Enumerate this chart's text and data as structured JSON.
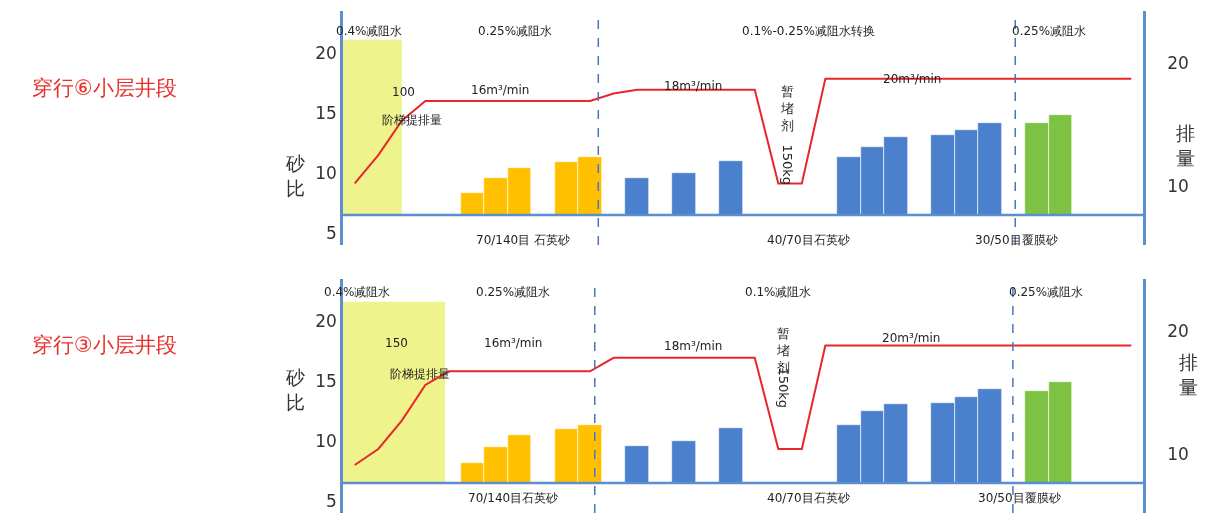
{
  "chart_data": [
    {
      "type": "bar",
      "ylabel": "砂比",
      "y2label": "排量",
      "categories": [
        null,
        null,
        null,
        null,
        null,
        null,
        null,
        null,
        null,
        null,
        null,
        null,
        null,
        null,
        null,
        null,
        null,
        null,
        null,
        null,
        null,
        null,
        null,
        null,
        null,
        null,
        null,
        null,
        null,
        null,
        null,
        null,
        null,
        null
      ],
      "ylim": [
        4,
        23.5
      ],
      "yticks": [
        5,
        10,
        15,
        20
      ],
      "y2lim": [
        5.2,
        24.2
      ],
      "y2ticks": [
        10,
        20
      ],
      "tick_labels": "y",
      "series": [
        {
          "color": "#ffc000",
          "base": [
            null,
            null,
            null,
            null,
            null,
            6.5,
            6.5,
            6.5,
            null,
            6.5,
            6.5,
            null,
            null,
            null,
            null,
            null,
            null,
            null,
            null,
            null,
            null,
            null,
            null,
            null,
            null,
            null,
            null,
            null,
            null,
            null,
            null,
            null,
            null,
            null
          ],
          "values": [
            null,
            null,
            null,
            null,
            null,
            1.8,
            3.1,
            3.9,
            null,
            4.4,
            4.8,
            null,
            null,
            null,
            null,
            null,
            null,
            null,
            null,
            null,
            null,
            null,
            null,
            null,
            null,
            null,
            null,
            null,
            null,
            null,
            null,
            null,
            null,
            null
          ]
        },
        {
          "color": "#4a80cc",
          "base": [
            null,
            null,
            null,
            null,
            null,
            null,
            null,
            null,
            null,
            null,
            null,
            null,
            6.5,
            null,
            6.5,
            null,
            6.5,
            null,
            null,
            null,
            null,
            6.5,
            6.5,
            6.5,
            null,
            6.5,
            6.5,
            6.5,
            null,
            null,
            null,
            null,
            null,
            null
          ],
          "values": [
            null,
            null,
            null,
            null,
            null,
            null,
            null,
            null,
            null,
            null,
            null,
            null,
            3.1,
            null,
            3.5,
            null,
            4.5,
            null,
            null,
            null,
            null,
            4.8,
            5.7,
            6.5,
            null,
            6.7,
            7.1,
            7.7,
            null,
            null,
            null,
            null,
            null,
            null
          ]
        },
        {
          "color": "#7dc242",
          "base": [
            null,
            null,
            null,
            null,
            null,
            null,
            null,
            null,
            null,
            null,
            null,
            null,
            null,
            null,
            null,
            null,
            null,
            null,
            null,
            null,
            null,
            null,
            null,
            null,
            null,
            null,
            null,
            null,
            null,
            6.5,
            6.5,
            null,
            null,
            null
          ],
          "values": [
            null,
            null,
            null,
            null,
            null,
            null,
            null,
            null,
            null,
            null,
            null,
            null,
            null,
            null,
            null,
            null,
            null,
            null,
            null,
            null,
            null,
            null,
            null,
            null,
            null,
            null,
            null,
            null,
            null,
            7.7,
            8.3,
            null,
            null,
            null
          ]
        },
        {
          "type": "line",
          "axis": "y2",
          "color": "#e8262b",
          "values": [
            10.2,
            12.5,
            15.3,
            16.9,
            16.9,
            16.9,
            16.9,
            16.9,
            16.9,
            16.9,
            16.9,
            17.5,
            17.8,
            17.8,
            17.8,
            17.8,
            17.8,
            17.8,
            10.2,
            10.2,
            18.7,
            18.7,
            18.7,
            18.7,
            18.7,
            18.7,
            18.7,
            18.7,
            18.7,
            18.7,
            18.7,
            18.7,
            18.7,
            18.7
          ]
        }
      ],
      "ref_lines": [
        {
          "axis": "y",
          "value": 6.5,
          "color": "#5b8fcf",
          "line_style": "solid"
        }
      ],
      "annotations": [
        "0.4%减阻水",
        "0.25%减阻水",
        "0.1%-0.25%减阻水转换",
        "0.25%减阻水",
        "100",
        "阶梯提排量",
        "16m³/min",
        "18m³/min",
        "20m³/min",
        "暂堵剂150kg",
        "70/140目 石英砂",
        "40/70目石英砂",
        "30/50目覆膜砂",
        "穿行⑥小层井段"
      ]
    },
    {
      "type": "bar",
      "ylabel": "砂比",
      "y2label": "排量",
      "categories": [
        null,
        null,
        null,
        null,
        null,
        null,
        null,
        null,
        null,
        null,
        null,
        null,
        null,
        null,
        null,
        null,
        null,
        null,
        null,
        null,
        null,
        null,
        null,
        null,
        null,
        null,
        null,
        null,
        null,
        null,
        null,
        null,
        null,
        null
      ],
      "ylim": [
        4,
        23.5
      ],
      "yticks": [
        5,
        10,
        15,
        20
      ],
      "y2lim": [
        5.2,
        24.2
      ],
      "y2ticks": [
        10,
        20
      ],
      "tick_labels": "y",
      "series": [
        {
          "color": "#ffc000",
          "base": [
            null,
            null,
            null,
            null,
            null,
            6.5,
            6.5,
            6.5,
            null,
            6.5,
            6.5,
            null,
            null,
            null,
            null,
            null,
            null,
            null,
            null,
            null,
            null,
            null,
            null,
            null,
            null,
            null,
            null,
            null,
            null,
            null,
            null,
            null,
            null,
            null
          ],
          "values": [
            null,
            null,
            null,
            null,
            null,
            1.7,
            3.0,
            4.0,
            null,
            4.5,
            4.8,
            null,
            null,
            null,
            null,
            null,
            null,
            null,
            null,
            null,
            null,
            null,
            null,
            null,
            null,
            null,
            null,
            null,
            null,
            null,
            null,
            null,
            null,
            null
          ]
        },
        {
          "color": "#4a80cc",
          "base": [
            null,
            null,
            null,
            null,
            null,
            null,
            null,
            null,
            null,
            null,
            null,
            null,
            6.5,
            null,
            6.5,
            null,
            6.5,
            null,
            null,
            null,
            null,
            6.5,
            6.5,
            6.5,
            null,
            6.5,
            6.5,
            6.5,
            null,
            null,
            null,
            null,
            null,
            null
          ],
          "values": [
            null,
            null,
            null,
            null,
            null,
            null,
            null,
            null,
            null,
            null,
            null,
            null,
            3.1,
            null,
            3.5,
            null,
            4.6,
            null,
            null,
            null,
            null,
            4.8,
            6.0,
            6.6,
            null,
            6.7,
            7.2,
            7.8,
            null,
            null,
            null,
            null,
            null,
            null
          ]
        },
        {
          "color": "#7dc242",
          "base": [
            null,
            null,
            null,
            null,
            null,
            null,
            null,
            null,
            null,
            null,
            null,
            null,
            null,
            null,
            null,
            null,
            null,
            null,
            null,
            null,
            null,
            null,
            null,
            null,
            null,
            null,
            null,
            null,
            null,
            6.5,
            6.5,
            null,
            null,
            null
          ],
          "values": [
            null,
            null,
            null,
            null,
            null,
            null,
            null,
            null,
            null,
            null,
            null,
            null,
            null,
            null,
            null,
            null,
            null,
            null,
            null,
            null,
            null,
            null,
            null,
            null,
            null,
            null,
            null,
            null,
            null,
            7.7,
            8.4,
            null,
            null,
            null
          ]
        },
        {
          "type": "line",
          "axis": "y2",
          "color": "#e8262b",
          "values": [
            9.1,
            10.4,
            12.7,
            15.6,
            16.7,
            16.7,
            16.7,
            16.7,
            16.7,
            16.7,
            16.7,
            17.8,
            17.8,
            17.8,
            17.8,
            17.8,
            17.8,
            17.8,
            10.4,
            10.4,
            18.8,
            18.8,
            18.8,
            18.8,
            18.8,
            18.8,
            18.8,
            18.8,
            18.8,
            18.8,
            18.8,
            18.8,
            18.8,
            18.8
          ]
        }
      ],
      "ref_lines": [
        {
          "axis": "y",
          "value": 6.5,
          "color": "#5b8fcf",
          "line_style": "solid"
        }
      ],
      "annotations": [
        "0.4%减阻水",
        "0.25%减阻水",
        "0.1%减阻水",
        "0.25%减阻水",
        "150",
        "阶梯提排量",
        "16m³/min",
        "18m³/min",
        "20m³/min",
        "暂堵剂150kg",
        "70/140目石英砂",
        "40/70目石英砂",
        "30/50目覆膜砂",
        "穿行③小层井段"
      ]
    }
  ]
}
